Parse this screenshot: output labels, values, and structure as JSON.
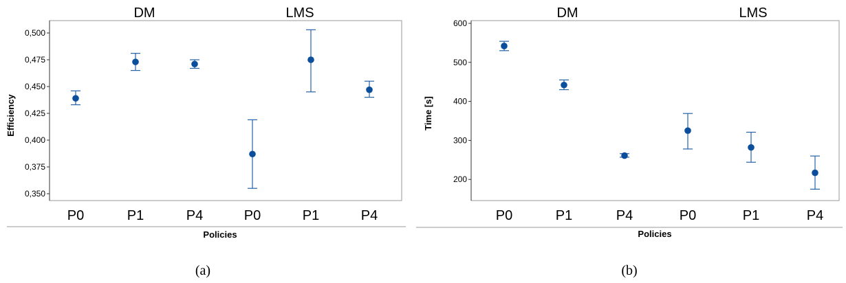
{
  "chart_data": [
    {
      "type": "scatter",
      "panel_label": "(a)",
      "group_labels": [
        "DM",
        "LMS"
      ],
      "categories": [
        "P0",
        "P1",
        "P4",
        "P0",
        "P1",
        "P4"
      ],
      "xlabel": "Policies",
      "ylabel": "Efficiency",
      "ylim": [
        0.35,
        0.51
      ],
      "yticks": [
        "0,350",
        "0,375",
        "0,400",
        "0,425",
        "0,450",
        "0,475",
        "0,500"
      ],
      "ytick_values": [
        0.35,
        0.375,
        0.4,
        0.425,
        0.45,
        0.475,
        0.5
      ],
      "series": [
        {
          "values": [
            0.439,
            0.473,
            0.471,
            0.387,
            0.475,
            0.447
          ],
          "lower": [
            0.433,
            0.465,
            0.467,
            0.355,
            0.445,
            0.44
          ],
          "upper": [
            0.446,
            0.481,
            0.475,
            0.419,
            0.503,
            0.455
          ]
        }
      ],
      "grid": false
    },
    {
      "type": "scatter",
      "panel_label": "(b)",
      "group_labels": [
        "DM",
        "LMS"
      ],
      "categories": [
        "P0",
        "P1",
        "P4",
        "P0",
        "P1",
        "P4"
      ],
      "xlabel": "Policies",
      "ylabel": "Time [s]",
      "ylim": [
        150,
        610
      ],
      "yticks": [
        "200",
        "300",
        "400",
        "500",
        "600"
      ],
      "ytick_values": [
        200,
        300,
        400,
        500,
        600
      ],
      "series": [
        {
          "values": [
            542,
            442,
            261,
            325,
            282,
            217
          ],
          "lower": [
            530,
            430,
            257,
            278,
            244,
            175
          ],
          "upper": [
            554,
            455,
            266,
            369,
            321,
            260
          ]
        }
      ],
      "grid": false
    }
  ],
  "colors": {
    "marker": "#0b4f9c",
    "errorbar": "#2462a8",
    "frame": "#9a9a9a"
  }
}
